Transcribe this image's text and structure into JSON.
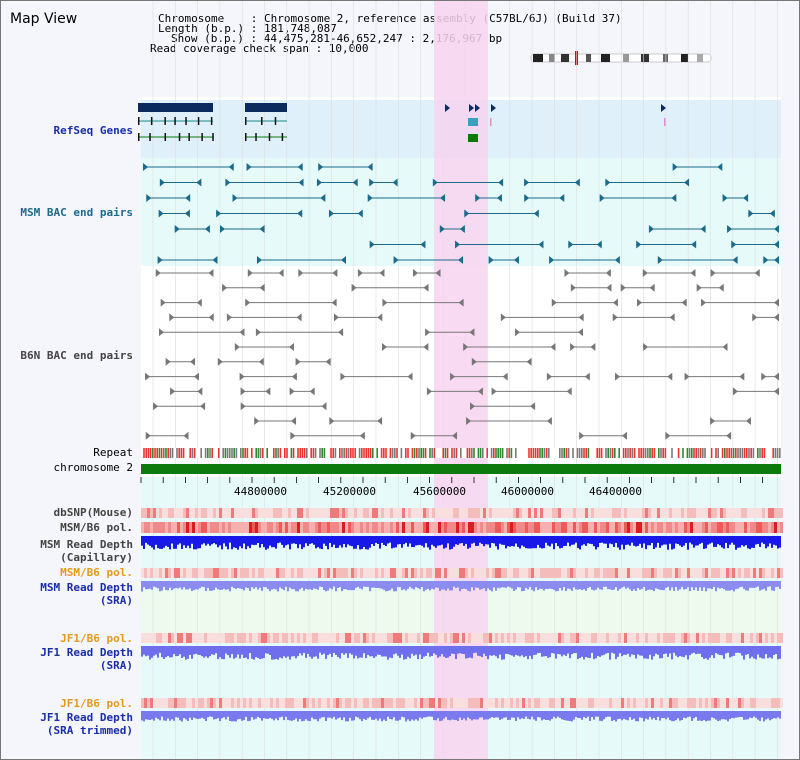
{
  "window": {
    "title": "Map View"
  },
  "info": {
    "chromosome_line": "Chromosome    : Chromosome 2, reference assembly (C57BL/6J) (Build 37)",
    "length_line": "Length (b.p.) : 181,748,087",
    "show_line": "Show (b.p.) : 44,475,281-46,652,247 : 2,176,967 bp",
    "span_line": "Read coverage check span : 10,000"
  },
  "tracks": {
    "refseq": "RefSeq Genes",
    "msm_bac": "MSM BAC end pairs",
    "b6n_bac": "B6N BAC end pairs",
    "repeat": "Repeat",
    "chromosome": "chromosome 2",
    "dbsnp": "dbSNP(Mouse)",
    "msm_b6_pol": "MSM/B6 pol.",
    "msm_depth_cap_1": "MSM Read Depth",
    "msm_depth_cap_2": "(Capillary)",
    "msm_b6_pol2": "MSM/B6 pol.",
    "msm_depth_sra_1": "MSM Read Depth",
    "msm_depth_sra_2": "(SRA)",
    "jf1_b6_pol": "JF1/B6 pol.",
    "jf1_depth_sra_1": "JF1 Read Depth",
    "jf1_depth_sra_2": "(SRA)",
    "jf1_b6_pol2": "JF1/B6 pol.",
    "jf1_depth_trim_1": "JF1 Read Depth",
    "jf1_depth_trim_2": "(SRA trimmed)"
  },
  "axis": {
    "ticks": [
      "44800000",
      "45200000",
      "45600000",
      "46000000",
      "46400000"
    ]
  },
  "colors": {
    "highlight": "#f7d4f0",
    "refseq_bg": "#dff0fa",
    "teal_bg": "#e6fafa",
    "depth_blue": "#2b2be0",
    "pol_red": "#e83a3a",
    "chrom_green": "#0c7a0c"
  }
}
